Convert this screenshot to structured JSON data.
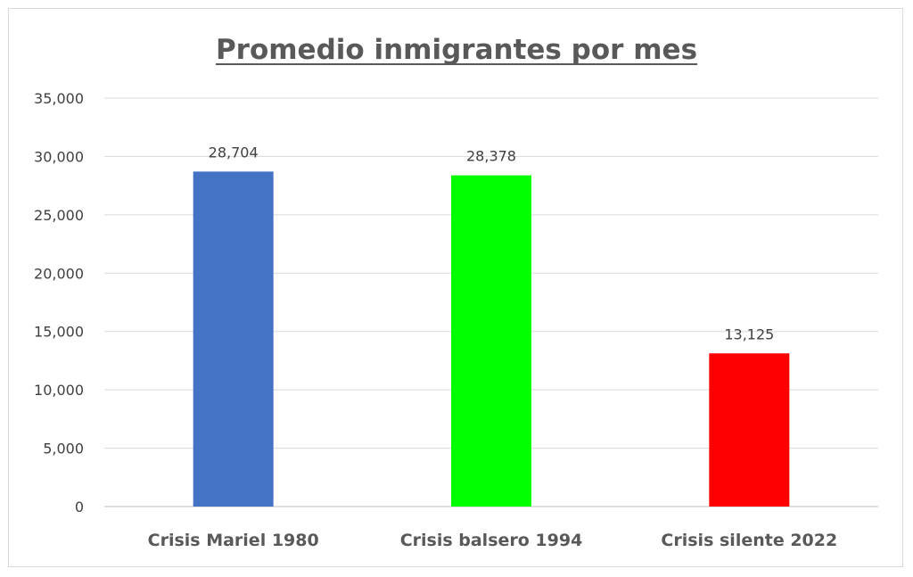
{
  "chart_data": {
    "type": "bar",
    "title": "Promedio inmigrantes por mes",
    "categories": [
      "Crisis Mariel 1980",
      "Crisis balsero 1994",
      "Crisis silente 2022"
    ],
    "values": [
      28704,
      28378,
      13125
    ],
    "data_labels": [
      "28,704",
      "28,378",
      "13,125"
    ],
    "bar_colors": [
      "#4472c4",
      "#00ff00",
      "#ff0000"
    ],
    "ylim": [
      0,
      35000
    ],
    "yticks": [
      0,
      5000,
      10000,
      15000,
      20000,
      25000,
      30000,
      35000
    ],
    "ytick_labels": [
      "0",
      "5,000",
      "10,000",
      "15,000",
      "20,000",
      "25,000",
      "30,000",
      "35,000"
    ],
    "grid": true,
    "legend": "none"
  }
}
